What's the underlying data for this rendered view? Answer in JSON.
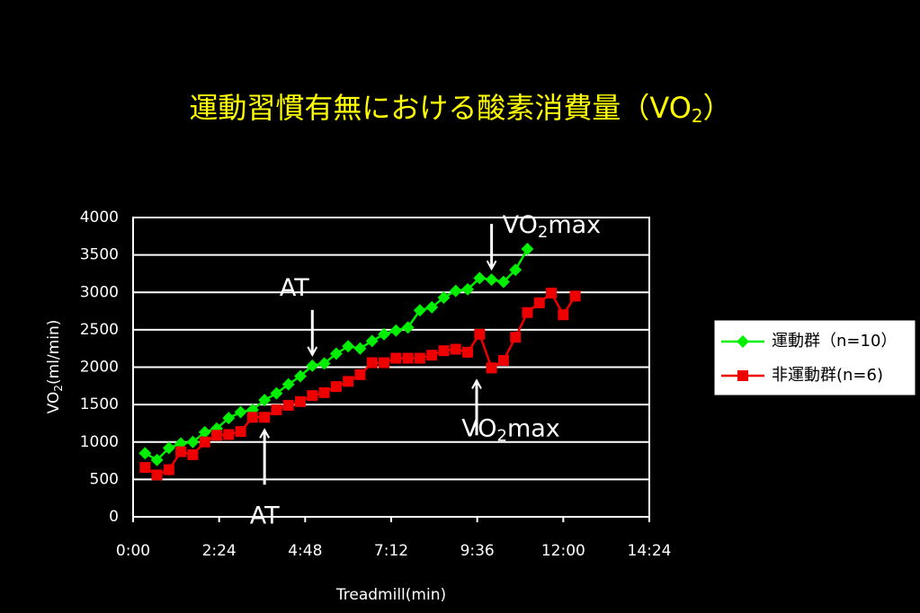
{
  "chart_data": {
    "type": "line",
    "title": [
      "運動習慣有無における酸素消費量（VO",
      "2",
      "）"
    ],
    "x_label": "Treadmill(min)",
    "y_label": [
      "VO",
      "2",
      "(ml/min)"
    ],
    "xlim": [
      0,
      864
    ],
    "xticks": [
      {
        "value": 0,
        "label": "0:00"
      },
      {
        "value": 144,
        "label": "2:24"
      },
      {
        "value": 288,
        "label": "4:48"
      },
      {
        "value": 432,
        "label": "7:12"
      },
      {
        "value": 576,
        "label": "9:36"
      },
      {
        "value": 720,
        "label": "12:00"
      },
      {
        "value": 864,
        "label": "14:24"
      }
    ],
    "ylim": [
      0,
      4000
    ],
    "yticks": [
      0,
      500,
      1000,
      1500,
      2000,
      2500,
      3000,
      3500,
      4000
    ],
    "grid": true,
    "legend": "right",
    "series": [
      {
        "name": "運動群（n=10）",
        "color": "#00ee00",
        "marker": "diamond",
        "x": [
          20,
          40,
          60,
          80,
          100,
          120,
          140,
          160,
          180,
          200,
          220,
          240,
          260,
          280,
          300,
          320,
          340,
          360,
          380,
          400,
          420,
          440,
          460,
          480,
          500,
          520,
          540,
          560,
          580,
          600,
          620,
          640,
          660
        ],
        "values": [
          850,
          760,
          920,
          980,
          1000,
          1130,
          1180,
          1320,
          1400,
          1430,
          1560,
          1650,
          1770,
          1880,
          2020,
          2050,
          2180,
          2280,
          2250,
          2350,
          2440,
          2490,
          2530,
          2760,
          2800,
          2930,
          3020,
          3040,
          3190,
          3170,
          3140,
          3300,
          3580
        ]
      },
      {
        "name": "非運動群(n=6)",
        "color": "#ee0000",
        "marker": "square",
        "x": [
          20,
          40,
          60,
          80,
          100,
          120,
          140,
          160,
          180,
          200,
          220,
          240,
          260,
          280,
          300,
          320,
          340,
          360,
          380,
          400,
          420,
          440,
          460,
          480,
          500,
          520,
          540,
          560,
          580,
          600,
          620,
          640,
          660,
          680,
          700,
          720,
          740
        ],
        "values": [
          660,
          560,
          630,
          870,
          830,
          1000,
          1090,
          1100,
          1140,
          1330,
          1330,
          1430,
          1490,
          1540,
          1620,
          1660,
          1740,
          1810,
          1900,
          2060,
          2060,
          2120,
          2120,
          2120,
          2160,
          2220,
          2240,
          2200,
          2440,
          1990,
          2090,
          2400,
          2730,
          2860,
          2990,
          2700,
          2950
        ]
      }
    ],
    "annotations": [
      {
        "text": [
          "AT"
        ],
        "x": 300,
        "y": 2020,
        "arrow": "down"
      },
      {
        "text": [
          "VO",
          "2",
          "max"
        ],
        "x": 600,
        "y": 3170,
        "arrow": "down"
      },
      {
        "text": [
          "AT"
        ],
        "x": 220,
        "y": 1330,
        "arrow": "up"
      },
      {
        "text": [
          "VO",
          "2",
          "max"
        ],
        "x": 575,
        "y": 1990,
        "arrow": "up"
      }
    ]
  }
}
